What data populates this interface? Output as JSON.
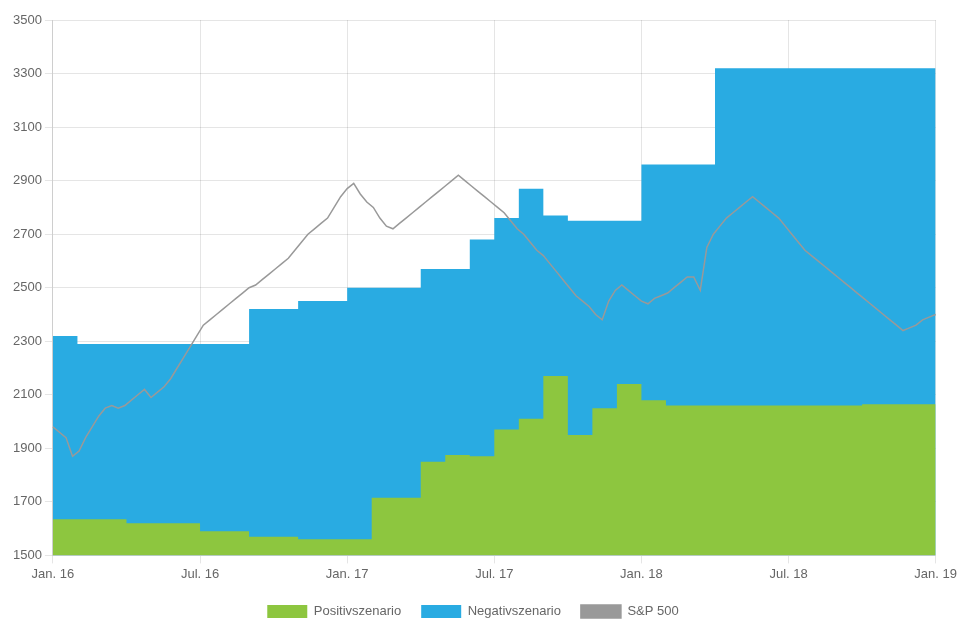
{
  "chart_data": {
    "type": "area",
    "xlim": [
      0,
      36
    ],
    "xticks": [
      {
        "value": 0,
        "label": "Jan. 16"
      },
      {
        "value": 6,
        "label": "Jul. 16"
      },
      {
        "value": 12,
        "label": "Jan. 17"
      },
      {
        "value": 18,
        "label": "Jul. 17"
      },
      {
        "value": 24,
        "label": "Jan. 18"
      },
      {
        "value": 30,
        "label": "Jul. 18"
      },
      {
        "value": 36,
        "label": "Jan. 19"
      }
    ],
    "ylim": [
      1500,
      3500
    ],
    "yticks": [
      1500,
      1700,
      1900,
      2100,
      2300,
      2500,
      2700,
      2900,
      3100,
      3300,
      3500
    ],
    "grid": true,
    "legend": "bottom",
    "series": [
      {
        "name": "Positivszenario",
        "type": "area",
        "line_style": "steps",
        "color": "#8DC63F",
        "x": [
          0,
          3,
          6,
          8,
          10,
          13,
          15,
          16,
          17,
          18,
          19,
          20,
          21,
          22,
          23,
          24,
          25,
          28,
          33,
          36
        ],
        "values": [
          1635,
          1620,
          1590,
          1570,
          1560,
          1715,
          1850,
          1875,
          1870,
          1970,
          2010,
          2170,
          1950,
          2050,
          2140,
          2080,
          2060,
          2060,
          2065,
          2065
        ]
      },
      {
        "name": "Negativszenario",
        "type": "area",
        "line_style": "steps",
        "color": "#29ABE2",
        "x": [
          0,
          1,
          7,
          8,
          10,
          12,
          15,
          17,
          18,
          19,
          20,
          21,
          24,
          27,
          33,
          36
        ],
        "values": [
          2320,
          2290,
          2290,
          2420,
          2450,
          2500,
          2570,
          2680,
          2760,
          2870,
          2770,
          2750,
          2960,
          3320,
          3320,
          3320
        ]
      },
      {
        "name": "S&P 500",
        "type": "line",
        "line_style": "solid",
        "color": "#999999",
        "values": [
          1980,
          1960,
          1940,
          1870,
          1890,
          1940,
          1980,
          2020,
          2050,
          2060,
          2050,
          2060,
          2080,
          2100,
          2120,
          2090,
          2110,
          2130,
          2160,
          2200,
          2240,
          2280,
          2320,
          2360,
          2380,
          2400,
          2420,
          2440,
          2460,
          2480,
          2500,
          2510,
          2530,
          2550,
          2570,
          2590,
          2610,
          2640,
          2670,
          2700,
          2720,
          2740,
          2760,
          2800,
          2840,
          2870,
          2890,
          2850,
          2820,
          2800,
          2760,
          2730,
          2720,
          2740,
          2760,
          2780,
          2800,
          2820,
          2840,
          2860,
          2880,
          2900,
          2920,
          2900,
          2880,
          2860,
          2840,
          2820,
          2800,
          2780,
          2750,
          2720,
          2700,
          2670,
          2640,
          2620,
          2590,
          2560,
          2530,
          2500,
          2470,
          2450,
          2430,
          2400,
          2380,
          2450,
          2490,
          2510,
          2490,
          2470,
          2450,
          2440,
          2460,
          2470,
          2480,
          2500,
          2520,
          2540,
          2540,
          2490,
          2650,
          2700,
          2730,
          2760,
          2780,
          2800,
          2820,
          2840,
          2820,
          2800,
          2780,
          2760,
          2730,
          2700,
          2670,
          2640,
          2620,
          2600,
          2580,
          2560,
          2540,
          2520,
          2500,
          2480,
          2460,
          2440,
          2420,
          2400,
          2380,
          2360,
          2340,
          2350,
          2360,
          2380,
          2390,
          2400
        ]
      }
    ]
  }
}
